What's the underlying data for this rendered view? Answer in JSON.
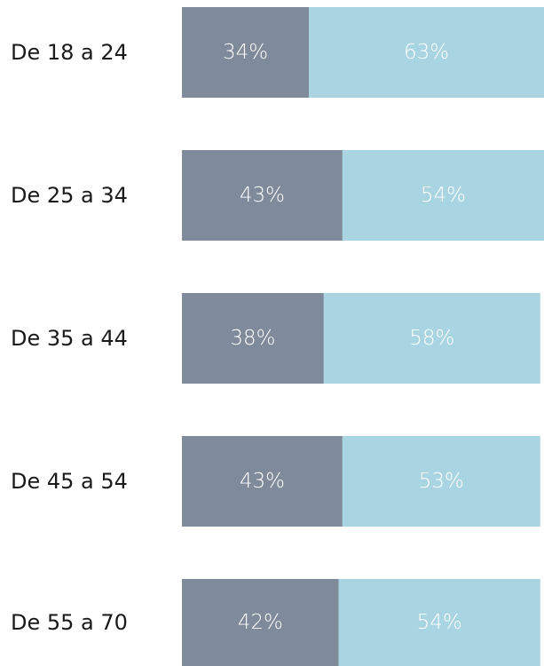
{
  "chart_data": {
    "type": "stacked-bar-horizontal",
    "categories": [
      "De 18 a 24",
      "De 25 a 34",
      "De 35 a 44",
      "De 45 a 54",
      "De 55 a 70"
    ],
    "series": [
      {
        "color": "#7f8a9b",
        "values": [
          34,
          43,
          38,
          43,
          42
        ],
        "value_labels": [
          "34%",
          "43%",
          "38%",
          "43%",
          "42%"
        ]
      },
      {
        "color": "#a9d4e1",
        "values": [
          63,
          54,
          58,
          53,
          54
        ],
        "value_labels": [
          "63%",
          "54%",
          "58%",
          "53%",
          "54%"
        ]
      }
    ]
  }
}
